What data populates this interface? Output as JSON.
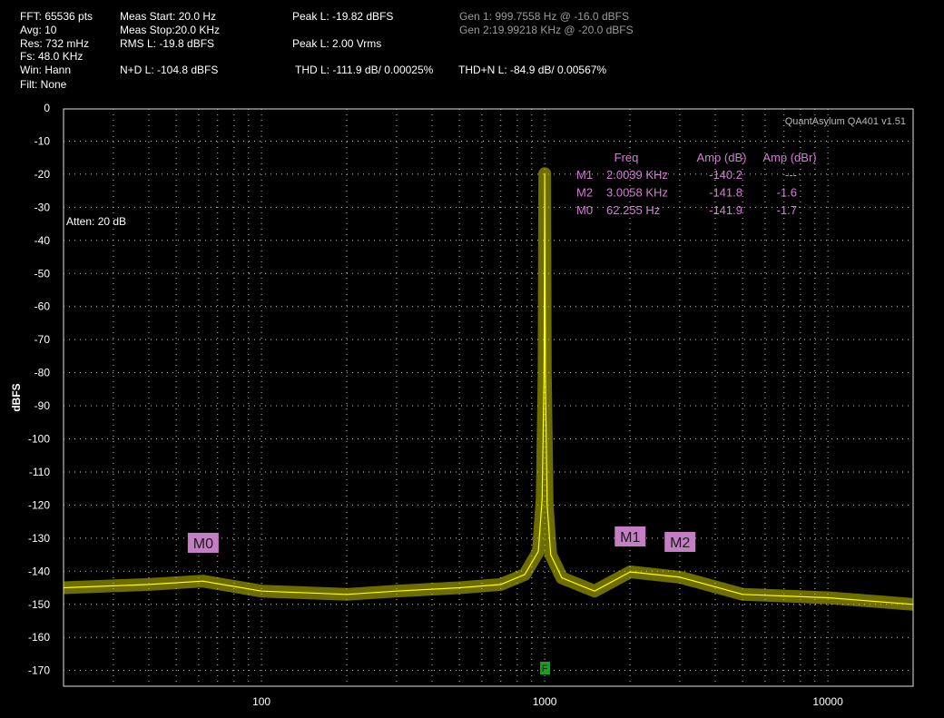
{
  "header": {
    "fft": "FFT: 65536 pts",
    "avg": "Avg: 10",
    "res": "Res: 732 mHz",
    "fs": "Fs: 48.0 KHz",
    "win": "Win: Hann",
    "filt": "Filt: None",
    "meas_start": "Meas Start: 20.0 Hz",
    "meas_stop": "Meas Stop:20.0 KHz",
    "rms": "RMS L: -19.8 dBFS",
    "nd": "N+D L: -104.8 dBFS",
    "peak_dbfs": "Peak L: -19.82 dBFS",
    "peak_vrms": "Peak L: 2.00 Vrms",
    "thd": "THD L: -111.9 dB/ 0.00025%",
    "thdn": "THD+N L: -84.9 dB/ 0.00567%",
    "gen1": "Gen 1: 999.7558 Hz @ -16.0  dBFS",
    "gen2": "Gen 2:19.99218 KHz @ -20.0  dBFS"
  },
  "plot": {
    "version": "QuantAsylum QA401 v1.51",
    "atten": "Atten: 20 dB",
    "fundamental_marker": "F",
    "colors": {
      "trace": "#ffff00",
      "grid": "#c8c8c8",
      "marker_bg": "#c47ec4",
      "marker_text": "#1a1a1a",
      "table_text": "#d77ad7",
      "fundamental_bg": "#1aa01a"
    }
  },
  "marker_table": {
    "headers": [
      "Freq",
      "Amp (dB)",
      "Amp (dBr)"
    ],
    "rows": [
      {
        "name": "M1",
        "freq": "2.0039 KHz",
        "amp": "-140.2",
        "ampr": "---"
      },
      {
        "name": "M2",
        "freq": "3.0058 KHz",
        "amp": "-141.8",
        "ampr": "-1.6"
      },
      {
        "name": "M0",
        "freq": "62.255 Hz",
        "amp": "-141.9",
        "ampr": "-1.7"
      }
    ]
  },
  "chart_data": {
    "type": "line",
    "title": "",
    "xlabel": "",
    "ylabel": "dBFS",
    "xscale": "log",
    "xlim": [
      20,
      20000
    ],
    "ylim": [
      -175,
      0
    ],
    "yticks": [
      0,
      -10,
      -20,
      -30,
      -40,
      -50,
      -60,
      -70,
      -80,
      -90,
      -100,
      -110,
      -120,
      -130,
      -140,
      -150,
      -160,
      -170
    ],
    "xticks": [
      100,
      1000,
      10000
    ],
    "xtick_labels": [
      "100",
      "1000",
      "10000"
    ],
    "grid": true,
    "series": [
      {
        "x": [
          20,
          40,
          62,
          100,
          200,
          300,
          500,
          700,
          850,
          950,
          980,
          995,
          1000,
          1005,
          1020,
          1050,
          1150,
          1500,
          2004,
          3006,
          5000,
          10000,
          20000
        ],
        "y": [
          -145,
          -144,
          -143,
          -146,
          -147,
          -146,
          -145,
          -144,
          -141,
          -134,
          -118,
          -80,
          -19.8,
          -80,
          -120,
          -135,
          -142,
          -146,
          -140.2,
          -141.8,
          -147,
          -148,
          -150
        ]
      }
    ],
    "markers": [
      {
        "name": "M0",
        "x": 62.255,
        "y": -141.9
      },
      {
        "name": "M1",
        "x": 2003.9,
        "y": -140.2
      },
      {
        "name": "M2",
        "x": 3005.8,
        "y": -141.8
      }
    ]
  }
}
